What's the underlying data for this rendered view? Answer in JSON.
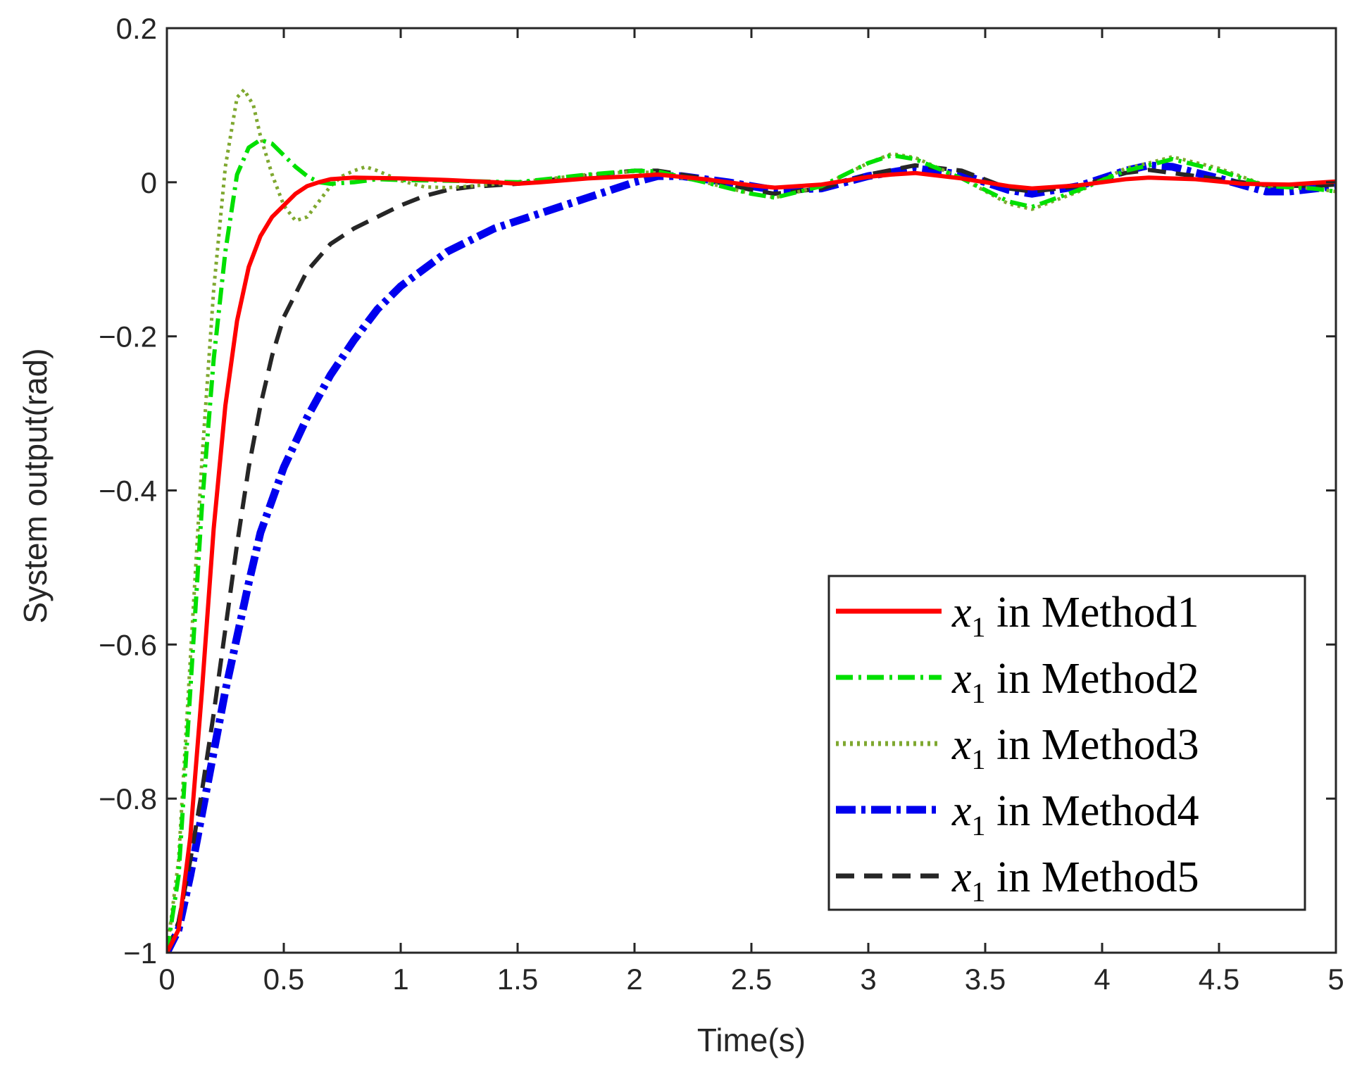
{
  "chart_data": {
    "type": "line",
    "title": "",
    "xlabel": "Time(s)",
    "ylabel": "System output(rad)",
    "xlim": [
      0,
      5
    ],
    "ylim": [
      -1,
      0.2
    ],
    "grid": false,
    "legend_position": "bottom-right",
    "x_ticks": [
      0,
      0.5,
      1,
      1.5,
      2,
      2.5,
      3,
      3.5,
      4,
      4.5,
      5
    ],
    "x_tick_labels": [
      "0",
      "0.5",
      "1",
      "1.5",
      "2",
      "2.5",
      "3",
      "3.5",
      "4",
      "4.5",
      "5"
    ],
    "y_ticks": [
      -1,
      -0.8,
      -0.6,
      -0.4,
      -0.2,
      0,
      0.2
    ],
    "y_tick_labels": [
      "−1",
      "−0.8",
      "−0.6",
      "−0.4",
      "−0.2",
      "0",
      "0.2"
    ],
    "series": [
      {
        "name": "x1 in Method1",
        "legend_var": "x",
        "legend_sub": "1",
        "legend_rest": " in Method1",
        "color": "#ff0000",
        "style": "solid",
        "points": [
          [
            0,
            -1
          ],
          [
            0.05,
            -0.97
          ],
          [
            0.1,
            -0.85
          ],
          [
            0.15,
            -0.66
          ],
          [
            0.2,
            -0.45
          ],
          [
            0.25,
            -0.29
          ],
          [
            0.3,
            -0.18
          ],
          [
            0.35,
            -0.11
          ],
          [
            0.4,
            -0.07
          ],
          [
            0.45,
            -0.045
          ],
          [
            0.5,
            -0.03
          ],
          [
            0.55,
            -0.015
          ],
          [
            0.6,
            -0.005
          ],
          [
            0.65,
            0.0
          ],
          [
            0.7,
            0.004
          ],
          [
            0.8,
            0.006
          ],
          [
            1.0,
            0.005
          ],
          [
            1.2,
            0.003
          ],
          [
            1.4,
            0.0
          ],
          [
            1.5,
            -0.002
          ],
          [
            1.6,
            0.0
          ],
          [
            1.8,
            0.005
          ],
          [
            2.0,
            0.008
          ],
          [
            2.1,
            0.01
          ],
          [
            2.3,
            0.004
          ],
          [
            2.5,
            -0.004
          ],
          [
            2.6,
            -0.007
          ],
          [
            2.8,
            -0.003
          ],
          [
            3.0,
            0.007
          ],
          [
            3.1,
            0.01
          ],
          [
            3.2,
            0.012
          ],
          [
            3.4,
            0.005
          ],
          [
            3.6,
            -0.005
          ],
          [
            3.7,
            -0.008
          ],
          [
            3.9,
            -0.004
          ],
          [
            4.1,
            0.004
          ],
          [
            4.2,
            0.006
          ],
          [
            4.4,
            0.004
          ],
          [
            4.6,
            -0.002
          ],
          [
            4.8,
            -0.003
          ],
          [
            5.0,
            0.001
          ]
        ]
      },
      {
        "name": "x1 in Method2",
        "legend_var": "x",
        "legend_sub": "1",
        "legend_rest": " in Method2",
        "color": "#00e000",
        "style": "dashdot",
        "points": [
          [
            0,
            -1
          ],
          [
            0.05,
            -0.9
          ],
          [
            0.1,
            -0.66
          ],
          [
            0.15,
            -0.42
          ],
          [
            0.2,
            -0.23
          ],
          [
            0.25,
            -0.09
          ],
          [
            0.3,
            0.01
          ],
          [
            0.35,
            0.045
          ],
          [
            0.4,
            0.055
          ],
          [
            0.45,
            0.05
          ],
          [
            0.5,
            0.035
          ],
          [
            0.55,
            0.02
          ],
          [
            0.6,
            0.008
          ],
          [
            0.65,
            0.0
          ],
          [
            0.7,
            -0.002
          ],
          [
            0.8,
            0.0
          ],
          [
            0.9,
            0.004
          ],
          [
            1.0,
            0.003
          ],
          [
            1.2,
            0.002
          ],
          [
            1.5,
            0.0
          ],
          [
            1.8,
            0.01
          ],
          [
            2.0,
            0.015
          ],
          [
            2.1,
            0.014
          ],
          [
            2.3,
            0.0
          ],
          [
            2.5,
            -0.015
          ],
          [
            2.6,
            -0.02
          ],
          [
            2.8,
            -0.005
          ],
          [
            3.0,
            0.025
          ],
          [
            3.1,
            0.035
          ],
          [
            3.2,
            0.03
          ],
          [
            3.4,
            0.005
          ],
          [
            3.6,
            -0.025
          ],
          [
            3.7,
            -0.032
          ],
          [
            3.9,
            -0.01
          ],
          [
            4.1,
            0.015
          ],
          [
            4.2,
            0.022
          ],
          [
            4.3,
            0.03
          ],
          [
            4.5,
            0.015
          ],
          [
            4.7,
            -0.005
          ],
          [
            4.9,
            -0.008
          ],
          [
            5.0,
            -0.012
          ]
        ]
      },
      {
        "name": "x1 in Method3",
        "legend_var": "x",
        "legend_sub": "1",
        "legend_rest": " in Method3",
        "color": "#7fa830",
        "style": "dotted",
        "points": [
          [
            0,
            -1
          ],
          [
            0.05,
            -0.88
          ],
          [
            0.1,
            -0.62
          ],
          [
            0.15,
            -0.36
          ],
          [
            0.2,
            -0.14
          ],
          [
            0.25,
            0.02
          ],
          [
            0.3,
            0.11
          ],
          [
            0.33,
            0.12
          ],
          [
            0.37,
            0.1
          ],
          [
            0.4,
            0.06
          ],
          [
            0.45,
            0.01
          ],
          [
            0.5,
            -0.03
          ],
          [
            0.55,
            -0.05
          ],
          [
            0.6,
            -0.045
          ],
          [
            0.65,
            -0.025
          ],
          [
            0.7,
            -0.005
          ],
          [
            0.75,
            0.008
          ],
          [
            0.8,
            0.015
          ],
          [
            0.85,
            0.02
          ],
          [
            0.9,
            0.015
          ],
          [
            1.0,
            0.002
          ],
          [
            1.1,
            -0.006
          ],
          [
            1.2,
            -0.007
          ],
          [
            1.3,
            -0.005
          ],
          [
            1.5,
            0.0
          ],
          [
            1.8,
            0.01
          ],
          [
            2.0,
            0.014
          ],
          [
            2.1,
            0.012
          ],
          [
            2.3,
            0.0
          ],
          [
            2.5,
            -0.015
          ],
          [
            2.6,
            -0.02
          ],
          [
            2.8,
            -0.005
          ],
          [
            3.0,
            0.025
          ],
          [
            3.1,
            0.037
          ],
          [
            3.2,
            0.032
          ],
          [
            3.4,
            0.005
          ],
          [
            3.6,
            -0.028
          ],
          [
            3.7,
            -0.035
          ],
          [
            3.9,
            -0.012
          ],
          [
            4.1,
            0.018
          ],
          [
            4.2,
            0.025
          ],
          [
            4.3,
            0.033
          ],
          [
            4.5,
            0.018
          ],
          [
            4.7,
            -0.004
          ],
          [
            4.9,
            -0.008
          ],
          [
            5.0,
            -0.012
          ]
        ]
      },
      {
        "name": "x1 in Method4",
        "legend_var": "x",
        "legend_sub": "1",
        "legend_rest": " in Method4",
        "color": "#0000ee",
        "style": "dashdot-thick",
        "points": [
          [
            0,
            -1
          ],
          [
            0.05,
            -0.97
          ],
          [
            0.1,
            -0.9
          ],
          [
            0.15,
            -0.82
          ],
          [
            0.2,
            -0.74
          ],
          [
            0.25,
            -0.66
          ],
          [
            0.3,
            -0.59
          ],
          [
            0.35,
            -0.52
          ],
          [
            0.4,
            -0.455
          ],
          [
            0.5,
            -0.37
          ],
          [
            0.6,
            -0.305
          ],
          [
            0.7,
            -0.25
          ],
          [
            0.8,
            -0.205
          ],
          [
            0.9,
            -0.165
          ],
          [
            1.0,
            -0.135
          ],
          [
            1.2,
            -0.09
          ],
          [
            1.4,
            -0.06
          ],
          [
            1.6,
            -0.04
          ],
          [
            1.8,
            -0.02
          ],
          [
            2.0,
            0.0
          ],
          [
            2.1,
            0.008
          ],
          [
            2.2,
            0.008
          ],
          [
            2.4,
            0.0
          ],
          [
            2.6,
            -0.01
          ],
          [
            2.8,
            -0.008
          ],
          [
            3.0,
            0.008
          ],
          [
            3.2,
            0.018
          ],
          [
            3.4,
            0.01
          ],
          [
            3.6,
            -0.01
          ],
          [
            3.7,
            -0.015
          ],
          [
            3.9,
            -0.005
          ],
          [
            4.1,
            0.015
          ],
          [
            4.2,
            0.022
          ],
          [
            4.3,
            0.02
          ],
          [
            4.5,
            0.005
          ],
          [
            4.7,
            -0.012
          ],
          [
            4.8,
            -0.012
          ],
          [
            5.0,
            -0.005
          ]
        ]
      },
      {
        "name": "x1 in Method5",
        "legend_var": "x",
        "legend_sub": "1",
        "legend_rest": " in Method5",
        "color": "#262626",
        "style": "dashed",
        "points": [
          [
            0,
            -1
          ],
          [
            0.05,
            -0.96
          ],
          [
            0.1,
            -0.88
          ],
          [
            0.15,
            -0.79
          ],
          [
            0.2,
            -0.69
          ],
          [
            0.25,
            -0.58
          ],
          [
            0.3,
            -0.47
          ],
          [
            0.35,
            -0.37
          ],
          [
            0.4,
            -0.29
          ],
          [
            0.45,
            -0.225
          ],
          [
            0.5,
            -0.175
          ],
          [
            0.6,
            -0.115
          ],
          [
            0.7,
            -0.08
          ],
          [
            0.8,
            -0.06
          ],
          [
            0.9,
            -0.045
          ],
          [
            1.0,
            -0.03
          ],
          [
            1.1,
            -0.018
          ],
          [
            1.2,
            -0.01
          ],
          [
            1.3,
            -0.006
          ],
          [
            1.5,
            -0.002
          ],
          [
            1.7,
            0.005
          ],
          [
            1.9,
            0.012
          ],
          [
            2.0,
            0.015
          ],
          [
            2.1,
            0.015
          ],
          [
            2.3,
            0.005
          ],
          [
            2.5,
            -0.01
          ],
          [
            2.6,
            -0.015
          ],
          [
            2.8,
            -0.008
          ],
          [
            3.0,
            0.01
          ],
          [
            3.2,
            0.022
          ],
          [
            3.4,
            0.015
          ],
          [
            3.6,
            -0.008
          ],
          [
            3.7,
            -0.012
          ],
          [
            3.9,
            -0.005
          ],
          [
            4.1,
            0.012
          ],
          [
            4.2,
            0.016
          ],
          [
            4.3,
            0.012
          ],
          [
            4.5,
            0.004
          ],
          [
            4.7,
            -0.004
          ],
          [
            4.9,
            -0.005
          ],
          [
            5.0,
            -0.003
          ]
        ]
      }
    ]
  }
}
